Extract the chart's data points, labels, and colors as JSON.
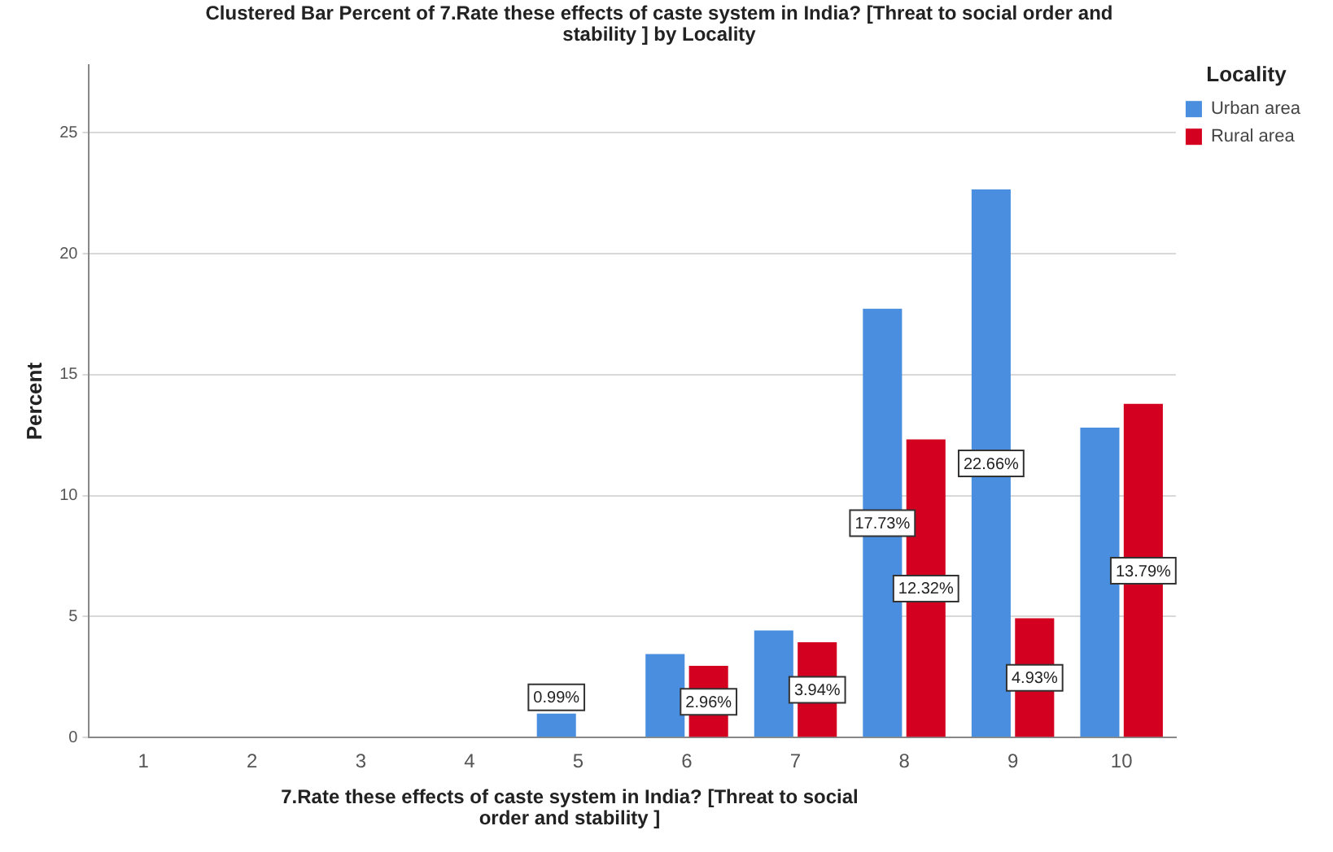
{
  "chart_data": {
    "type": "bar",
    "title": "Clustered Bar Percent of 7.Rate these effects of caste system in India? [Threat to social order and stability ] by Locality",
    "xlabel": "7.Rate these effects of caste system in India? [Threat to social order and stability ]",
    "ylabel": "Percent",
    "legend_title": "Locality",
    "categories": [
      "1",
      "2",
      "3",
      "4",
      "5",
      "6",
      "7",
      "8",
      "9",
      "10"
    ],
    "series": [
      {
        "name": "Urban area",
        "color": "#4a8fdf",
        "values": [
          null,
          null,
          null,
          null,
          0.99,
          3.45,
          4.43,
          17.73,
          22.66,
          12.81
        ],
        "value_labels": [
          null,
          null,
          null,
          null,
          "0.99%",
          null,
          null,
          "17.73%",
          "22.66%",
          null
        ]
      },
      {
        "name": "Rural area",
        "color": "#d3001f",
        "values": [
          null,
          null,
          null,
          null,
          null,
          2.96,
          3.94,
          12.32,
          4.93,
          13.79
        ],
        "value_labels": [
          null,
          null,
          null,
          null,
          null,
          "2.96%",
          "3.94%",
          "12.32%",
          "4.93%",
          "13.79%"
        ]
      }
    ],
    "ylim": [
      0,
      27.8
    ],
    "yticks": [
      0,
      5,
      10,
      15,
      20,
      25
    ],
    "grid": "y",
    "legend": "top right"
  }
}
